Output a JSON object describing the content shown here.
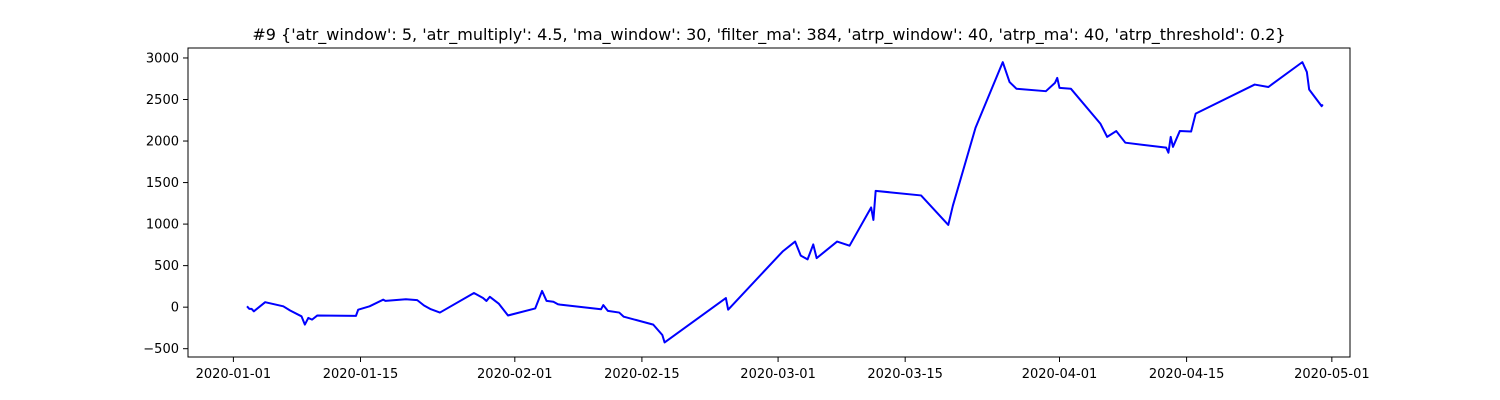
{
  "chart_data": {
    "type": "line",
    "title": "#9 {'atr_window': 5, 'atr_multiply': 4.5, 'ma_window': 30, 'filter_ma': 384, 'atrp_window': 40, 'atrp_ma': 40, 'atrp_threshold': 0.2}",
    "xlabel": "",
    "ylabel": "",
    "grid": false,
    "legend": "none",
    "xlim": [
      "2019-12-27",
      "2020-05-03"
    ],
    "ylim": [
      -600,
      3120
    ],
    "xticks": [
      {
        "date": "2020-01-01",
        "label": "2020-01-01"
      },
      {
        "date": "2020-01-15",
        "label": "2020-01-15"
      },
      {
        "date": "2020-02-01",
        "label": "2020-02-01"
      },
      {
        "date": "2020-02-15",
        "label": "2020-02-15"
      },
      {
        "date": "2020-03-01",
        "label": "2020-03-01"
      },
      {
        "date": "2020-03-15",
        "label": "2020-03-15"
      },
      {
        "date": "2020-04-01",
        "label": "2020-04-01"
      },
      {
        "date": "2020-04-15",
        "label": "2020-04-15"
      },
      {
        "date": "2020-05-01",
        "label": "2020-05-01"
      }
    ],
    "yticks": [
      {
        "value": 3000,
        "label": "3000"
      },
      {
        "value": 2500,
        "label": "2500"
      },
      {
        "value": 2000,
        "label": "2000"
      },
      {
        "value": 1500,
        "label": "1500"
      },
      {
        "value": 1000,
        "label": "1000"
      },
      {
        "value": 500,
        "label": "500"
      },
      {
        "value": 0,
        "label": "0"
      },
      {
        "value": -500,
        "label": "−500"
      }
    ],
    "series": [
      {
        "color": "#0000ff",
        "x": [
          "2020-01-02T12:00",
          "2020-01-02T18:00",
          "2020-01-03T00:00",
          "2020-01-03T06:00",
          "2020-01-04T12:00",
          "2020-01-06T12:00",
          "2020-01-07T06:00",
          "2020-01-08T12:00",
          "2020-01-08T21:00",
          "2020-01-09T06:00",
          "2020-01-09T16:00",
          "2020-01-10T06:00",
          "2020-01-14T12:00",
          "2020-01-14T18:00",
          "2020-01-16T00:00",
          "2020-01-17T12:00",
          "2020-01-17T18:00",
          "2020-01-20T00:00",
          "2020-01-21T06:00",
          "2020-01-22T00:00",
          "2020-01-22T18:00",
          "2020-01-23T18:00",
          "2020-01-27T12:00",
          "2020-01-28T12:00",
          "2020-01-28T21:00",
          "2020-01-29T06:00",
          "2020-01-30T06:00",
          "2020-01-31T06:00",
          "2020-02-03T06:00",
          "2020-02-04T00:00",
          "2020-02-04T12:00",
          "2020-02-05T06:00",
          "2020-02-05T18:00",
          "2020-02-06T00:00",
          "2020-02-10T12:00",
          "2020-02-10T18:00",
          "2020-02-11T06:00",
          "2020-02-12T12:00",
          "2020-02-13T00:00",
          "2020-02-16T06:00",
          "2020-02-17T06:00",
          "2020-02-17T12:00",
          "2020-02-24T06:00",
          "2020-02-24T12:00",
          "2020-03-01T12:00",
          "2020-03-02T21:00",
          "2020-03-03T12:00",
          "2020-03-04T06:00",
          "2020-03-04T21:00",
          "2020-03-05T06:00",
          "2020-03-07T12:00",
          "2020-03-08T21:00",
          "2020-03-11T06:00",
          "2020-03-11T12:00",
          "2020-03-11T18:00",
          "2020-03-16T18:00",
          "2020-03-19T18:00",
          "2020-03-20T06:00",
          "2020-03-22T18:00",
          "2020-03-25T18:00",
          "2020-03-26T12:00",
          "2020-03-27T06:00",
          "2020-03-30T12:00",
          "2020-03-31T12:00",
          "2020-03-31T18:00",
          "2020-04-01T00:00",
          "2020-04-02T06:00",
          "2020-04-05T12:00",
          "2020-04-06T06:00",
          "2020-04-07T06:00",
          "2020-04-08T06:00",
          "2020-04-12T18:00",
          "2020-04-13T00:00",
          "2020-04-13T06:00",
          "2020-04-13T12:00",
          "2020-04-14T06:00",
          "2020-04-15T12:00",
          "2020-04-16T00:00",
          "2020-04-22T12:00",
          "2020-04-24T00:00",
          "2020-04-27T18:00",
          "2020-04-28T06:00",
          "2020-04-28T12:00",
          "2020-04-29T21:00",
          "2020-04-30T00:00"
        ],
        "y": [
          10,
          -20,
          -20,
          -50,
          60,
          10,
          -40,
          -110,
          -210,
          -130,
          -150,
          -100,
          -105,
          -30,
          10,
          90,
          75,
          95,
          85,
          20,
          -25,
          -65,
          170,
          110,
          75,
          125,
          40,
          -100,
          -15,
          195,
          75,
          65,
          35,
          30,
          -25,
          25,
          -45,
          -65,
          -115,
          -210,
          -335,
          -425,
          110,
          -30,
          670,
          790,
          620,
          575,
          755,
          590,
          790,
          740,
          1200,
          1050,
          1400,
          1345,
          990,
          1220,
          2160,
          2950,
          2710,
          2630,
          2600,
          2700,
          2760,
          2640,
          2630,
          2210,
          2050,
          2120,
          1980,
          1920,
          1860,
          2050,
          1930,
          2120,
          2115,
          2330,
          2680,
          2650,
          2950,
          2830,
          2620,
          2420,
          2440
        ]
      }
    ]
  }
}
